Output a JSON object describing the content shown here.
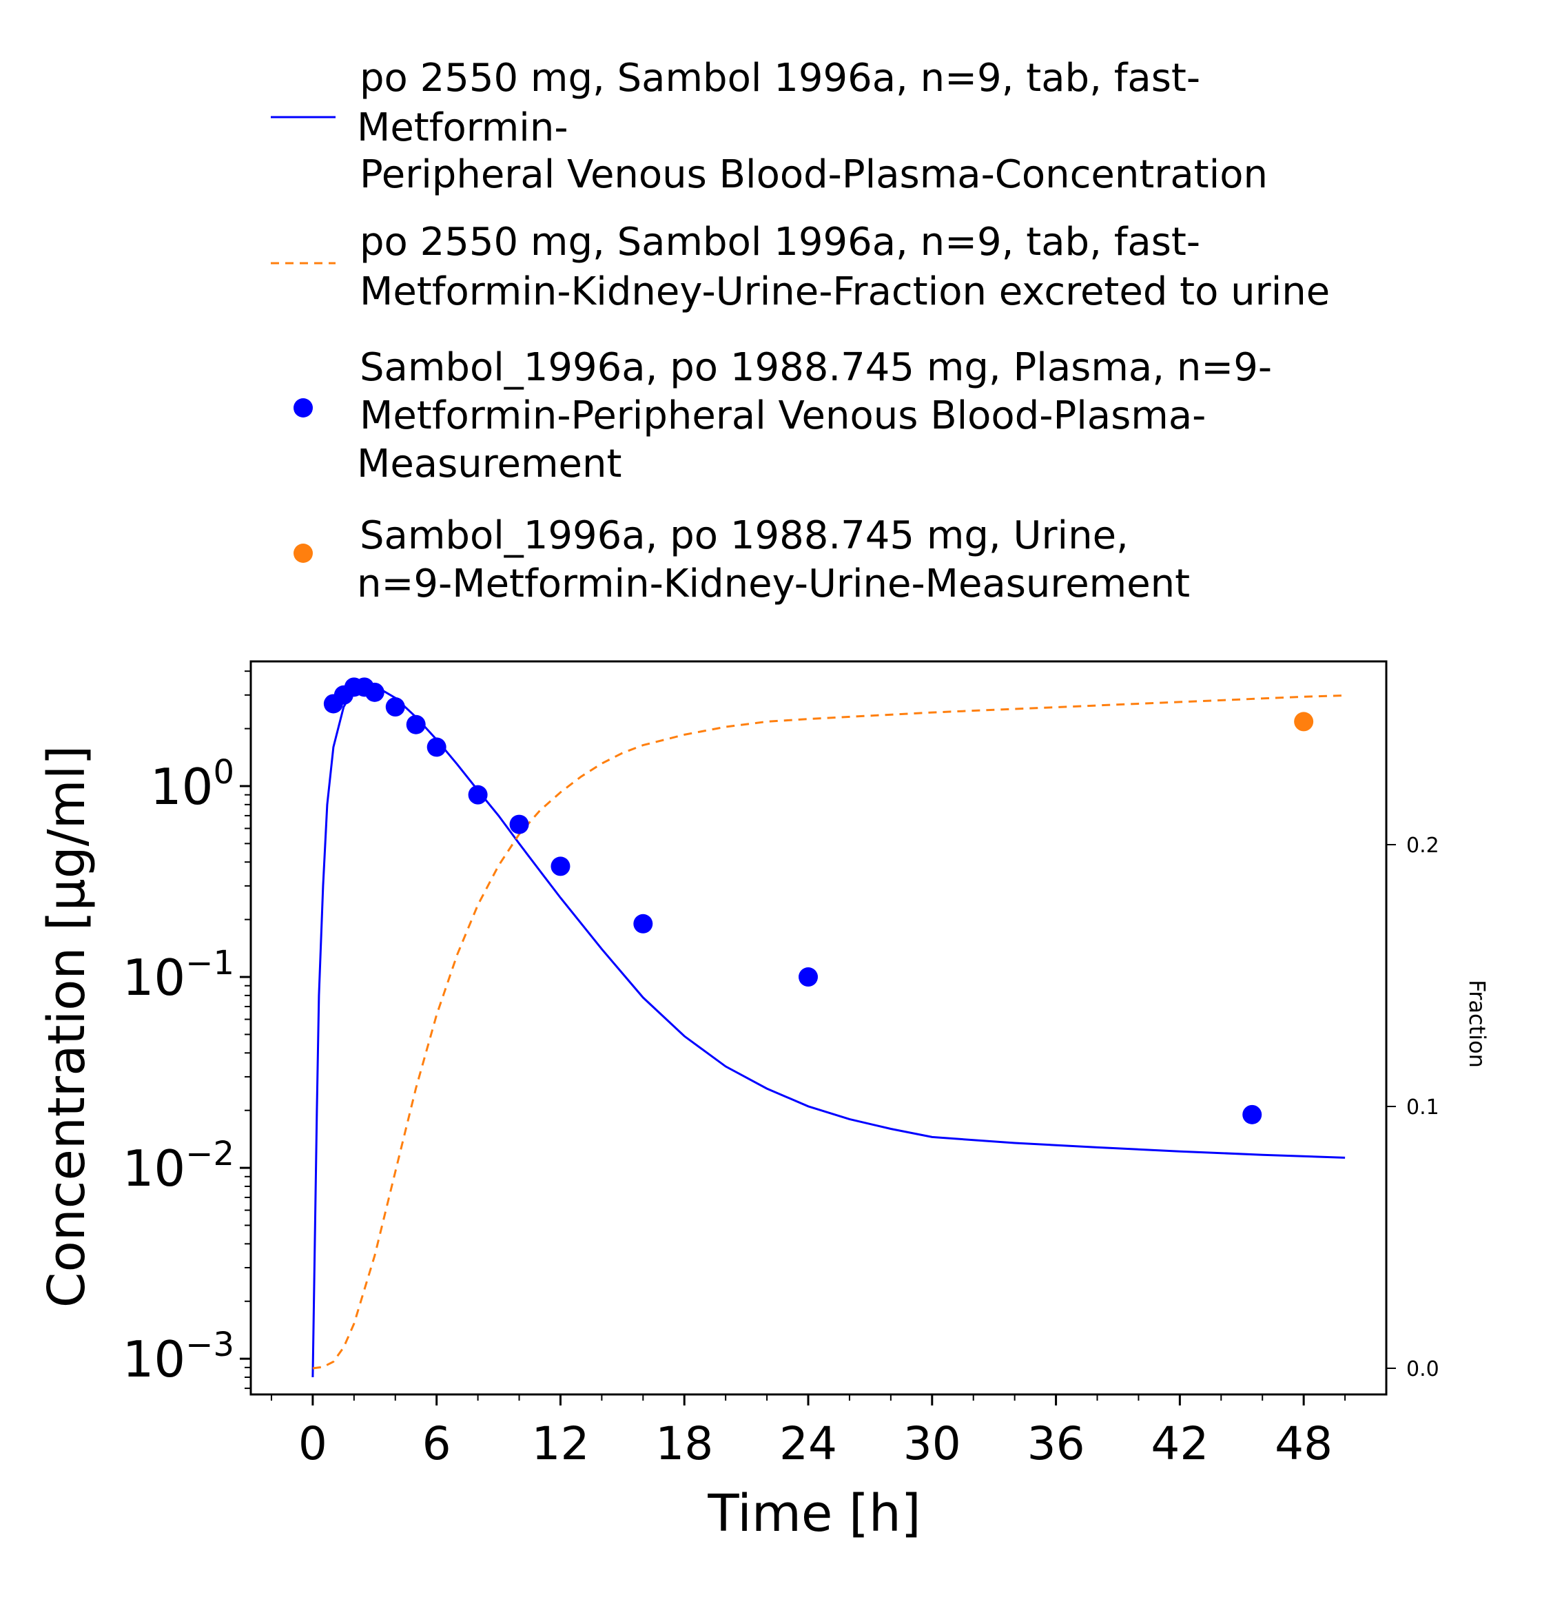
{
  "chart_data": {
    "type": "line",
    "xlabel": "Time [h]",
    "ylabel": "Concentration [µg/ml]",
    "y2label": "Fraction",
    "y_scale": "log",
    "xlim": [
      -3,
      52
    ],
    "ylim": [
      0.00065,
      4.5
    ],
    "y2lim": [
      -0.01,
      0.27
    ],
    "x_ticks": [
      "0",
      "6",
      "12",
      "18",
      "24",
      "30",
      "36",
      "42",
      "48"
    ],
    "y_ticks": [
      {
        "base": "10",
        "exp": "0"
      },
      {
        "base": "10",
        "exp": "−1"
      },
      {
        "base": "10",
        "exp": "−2"
      },
      {
        "base": "10",
        "exp": "−3"
      }
    ],
    "y2_ticks": [
      "0.0",
      "0.1",
      "0.2"
    ],
    "legend_position": "top",
    "series": [
      {
        "name_lines": [
          "po 2550 mg, Sambol 1996a, n=9, tab, fast-",
          "Metformin-",
          "Peripheral Venous Blood-Plasma-Concentration"
        ],
        "kind": "line",
        "axis": "left",
        "color": "#0000ff",
        "points": [
          [
            0,
            0.0008
          ],
          [
            0.1,
            0.004
          ],
          [
            0.2,
            0.02
          ],
          [
            0.3,
            0.08
          ],
          [
            0.5,
            0.3
          ],
          [
            0.7,
            0.8
          ],
          [
            1.0,
            1.6
          ],
          [
            1.5,
            2.6
          ],
          [
            2.0,
            3.2
          ],
          [
            2.5,
            3.4
          ],
          [
            3.0,
            3.35
          ],
          [
            4.0,
            2.9
          ],
          [
            5.0,
            2.3
          ],
          [
            6.0,
            1.75
          ],
          [
            7.0,
            1.3
          ],
          [
            8.0,
            0.95
          ],
          [
            9.0,
            0.7
          ],
          [
            10.0,
            0.5
          ],
          [
            11.0,
            0.36
          ],
          [
            12.0,
            0.26
          ],
          [
            14.0,
            0.14
          ],
          [
            16.0,
            0.078
          ],
          [
            18.0,
            0.049
          ],
          [
            20.0,
            0.034
          ],
          [
            22.0,
            0.026
          ],
          [
            24.0,
            0.021
          ],
          [
            26.0,
            0.018
          ],
          [
            28.0,
            0.016
          ],
          [
            30.0,
            0.0145
          ],
          [
            34.0,
            0.0135
          ],
          [
            38.0,
            0.0128
          ],
          [
            42.0,
            0.0122
          ],
          [
            46.0,
            0.0117
          ],
          [
            50.0,
            0.0113
          ]
        ]
      },
      {
        "name_lines": [
          "po 2550 mg, Sambol 1996a, n=9, tab, fast-",
          "Metformin-Kidney-Urine-Fraction excreted to urine"
        ],
        "kind": "dashed-line",
        "axis": "right",
        "color": "#ff7f0e",
        "points": [
          [
            0,
            0.0
          ],
          [
            0.5,
            0.0005
          ],
          [
            1.0,
            0.0025
          ],
          [
            1.5,
            0.008
          ],
          [
            2.0,
            0.017
          ],
          [
            3.0,
            0.043
          ],
          [
            4.0,
            0.075
          ],
          [
            5.0,
            0.107
          ],
          [
            6.0,
            0.135
          ],
          [
            7.0,
            0.158
          ],
          [
            8.0,
            0.177
          ],
          [
            9.0,
            0.192
          ],
          [
            10.0,
            0.204
          ],
          [
            11.0,
            0.213
          ],
          [
            12.0,
            0.22
          ],
          [
            13.0,
            0.226
          ],
          [
            14.0,
            0.231
          ],
          [
            15.0,
            0.235
          ],
          [
            16.0,
            0.238
          ],
          [
            17.0,
            0.24
          ],
          [
            18.0,
            0.242
          ],
          [
            20.0,
            0.245
          ],
          [
            22.0,
            0.247
          ],
          [
            24.0,
            0.248
          ],
          [
            30.0,
            0.2505
          ],
          [
            36.0,
            0.2525
          ],
          [
            42.0,
            0.2545
          ],
          [
            48.0,
            0.2565
          ],
          [
            50.0,
            0.257
          ]
        ]
      },
      {
        "name_lines": [
          "Sambol_1996a, po 1988.745 mg, Plasma, n=9-",
          "Metformin-Peripheral Venous Blood-Plasma-",
          "Measurement"
        ],
        "kind": "scatter",
        "axis": "left",
        "color": "#0000ff",
        "points": [
          [
            1.0,
            2.7
          ],
          [
            1.5,
            3.0
          ],
          [
            2.0,
            3.3
          ],
          [
            2.5,
            3.3
          ],
          [
            3.0,
            3.1
          ],
          [
            4.0,
            2.6
          ],
          [
            5.0,
            2.1
          ],
          [
            6.0,
            1.6
          ],
          [
            8.0,
            0.9
          ],
          [
            10.0,
            0.63
          ],
          [
            12.0,
            0.38
          ],
          [
            16.0,
            0.19
          ],
          [
            24.0,
            0.1
          ],
          [
            45.5,
            0.019
          ]
        ]
      },
      {
        "name_lines": [
          "Sambol_1996a, po 1988.745 mg, Urine,",
          "n=9-Metformin-Kidney-Urine-Measurement"
        ],
        "kind": "scatter",
        "axis": "right",
        "color": "#ff7f0e",
        "points": [
          [
            48.0,
            0.247
          ]
        ]
      }
    ]
  }
}
